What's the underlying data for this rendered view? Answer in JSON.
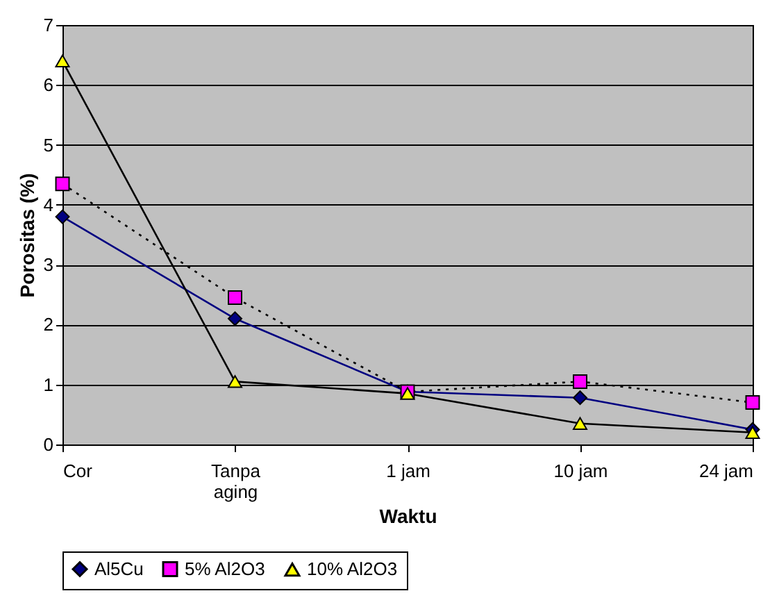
{
  "chart_data": {
    "type": "line",
    "xlabel": "Waktu",
    "ylabel": "Porositas (%)",
    "categories": [
      "Cor",
      "Tanpa aging",
      "1 jam",
      "10 jam",
      "24 jam"
    ],
    "series": [
      {
        "name": "Al5Cu",
        "color": "#000080",
        "colors": [
          "#000080",
          "#000080",
          "#000080",
          "#000080",
          "#000080"
        ],
        "marker": "diamond",
        "line_style": "solid",
        "values": [
          3.8,
          2.1,
          0.88,
          0.78,
          0.25
        ]
      },
      {
        "name": "5% Al2O3",
        "color": "#000000",
        "colors": [
          "#ff00ff",
          "#ff00ff",
          "#ff00ff",
          "#ff00ff",
          "#ff00ff"
        ],
        "marker": "square",
        "line_style": "dotted",
        "values": [
          4.35,
          2.45,
          0.88,
          1.05,
          0.7
        ]
      },
      {
        "name": "10% Al2O3",
        "color": "#000000",
        "colors": [
          "#ffff00",
          "#ffff00",
          "#ffff00",
          "#ffff00",
          "#ffff00"
        ],
        "marker": "triangle",
        "line_style": "solid",
        "values": [
          6.4,
          1.05,
          0.85,
          0.35,
          0.2
        ]
      }
    ],
    "ylim": [
      0,
      7
    ],
    "yticks": [
      0,
      1,
      2,
      3,
      4,
      5,
      6,
      7
    ],
    "grid": "y",
    "legend": "bottom"
  }
}
